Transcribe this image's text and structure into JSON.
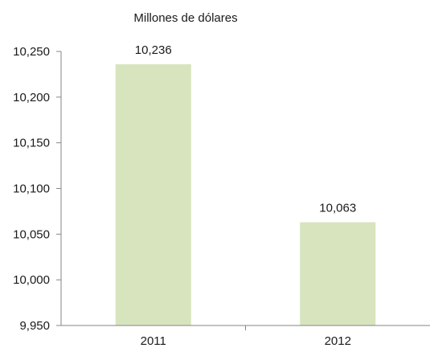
{
  "chart_data": {
    "type": "bar",
    "title": "Millones de dólares",
    "xlabel": "",
    "ylabel": "",
    "categories": [
      "2011",
      "2012"
    ],
    "values": [
      10236,
      10063
    ],
    "data_labels": [
      "10,236",
      "10,063"
    ],
    "ylim": [
      9950,
      10250
    ],
    "yticks": [
      9950,
      10000,
      10050,
      10100,
      10150,
      10200,
      10250
    ],
    "ytick_labels": [
      "9,950",
      "10,000",
      "10,050",
      "10,100",
      "10,150",
      "10,200",
      "10,250"
    ],
    "grid": false,
    "legend": "none",
    "colors": {
      "bar": "#d7e4bd",
      "axis": "#868686"
    }
  }
}
